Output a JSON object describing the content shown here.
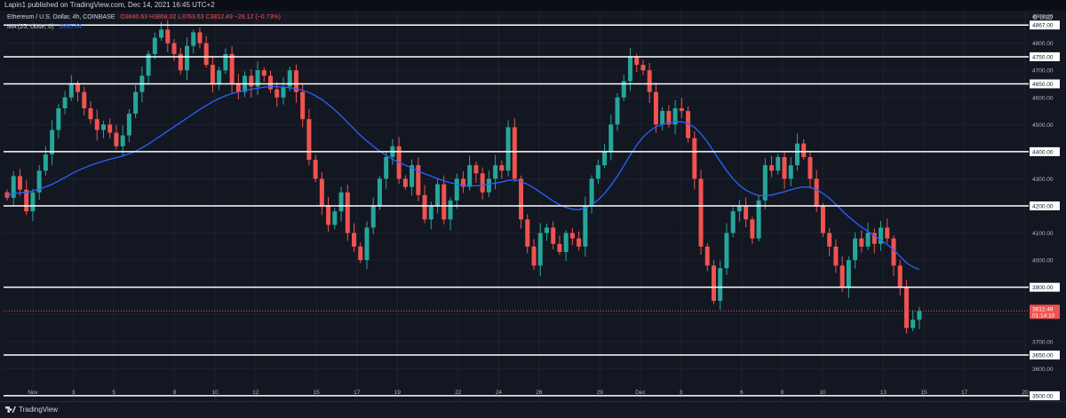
{
  "header": {
    "published_text": "Lapin1 published on TradingView.com, Dec 14, 2021 16:45 UTC+2"
  },
  "legend": {
    "symbol": "Ethereum / U.S. Dollar, 4h, COINBASE",
    "ohlc": "O3840.63 H3868.02 L3763.63 C3812.49 −28.12 (−0.73%)",
    "ma_label": "MA (25, close, 0)",
    "ma_value": "3965.44"
  },
  "axis": {
    "unit_label": "USD",
    "price_badge": "3812.49",
    "countdown": "01:14:10"
  },
  "footer": {
    "brand": "TradingView"
  },
  "colors": {
    "background": "#131722",
    "up": "#26a69a",
    "down": "#ef5350",
    "ma": "#2962ff",
    "level": "#ffffff",
    "badge": "#ef5350"
  },
  "chart_data": {
    "type": "candlestick",
    "symbol": "ETHUSD",
    "timeframe": "4h",
    "ylim": [
      3480,
      4920
    ],
    "price_ticks": [
      3500,
      3600,
      3650,
      3700,
      3800,
      3900,
      4000,
      4100,
      4200,
      4300,
      4400,
      4500,
      4600,
      4650,
      4700,
      4750,
      4800,
      4867,
      4900
    ],
    "date_ticks": [
      "Nov",
      "3",
      "5",
      "8",
      "10",
      "12",
      "15",
      "17",
      "19",
      "22",
      "24",
      "26",
      "29",
      "Dec",
      "3",
      "6",
      "8",
      "10",
      "13",
      "15",
      "17",
      "20"
    ],
    "date_tick_days": [
      0,
      2,
      4,
      7,
      9,
      11,
      14,
      16,
      18,
      21,
      23,
      25,
      28,
      30,
      32,
      35,
      37,
      39,
      42,
      44,
      46,
      49
    ],
    "horizontal_levels": [
      {
        "price": 4867,
        "label": "4867.00"
      },
      {
        "price": 4750,
        "label": "4750.00"
      },
      {
        "price": 4650,
        "label": "4650.00"
      },
      {
        "price": 4400,
        "label": "4400.00"
      },
      {
        "price": 4200,
        "label": "4200.00"
      },
      {
        "price": 3900,
        "label": "3900.00"
      },
      {
        "price": 3650,
        "label": "3650.00"
      },
      {
        "price": 3500,
        "label": "3500.00"
      }
    ],
    "current_price": 3812.49,
    "candle_closes": [
      4230,
      4310,
      4260,
      4180,
      4250,
      4330,
      4390,
      4480,
      4560,
      4600,
      4650,
      4620,
      4560,
      4520,
      4480,
      4500,
      4470,
      4420,
      4460,
      4540,
      4620,
      4680,
      4760,
      4820,
      4850,
      4800,
      4760,
      4700,
      4790,
      4840,
      4800,
      4720,
      4650,
      4700,
      4760,
      4650,
      4620,
      4680,
      4640,
      4700,
      4680,
      4630,
      4600,
      4640,
      4700,
      4620,
      4520,
      4370,
      4300,
      4200,
      4130,
      4180,
      4250,
      4100,
      4050,
      4000,
      4120,
      4200,
      4300,
      4380,
      4420,
      4300,
      4270,
      4350,
      4240,
      4150,
      4200,
      4280,
      4150,
      4220,
      4300,
      4270,
      4350,
      4320,
      4250,
      4300,
      4350,
      4330,
      4490,
      4300,
      4150,
      4050,
      3980,
      4100,
      4120,
      4060,
      4030,
      4100,
      4080,
      4050,
      4200,
      4300,
      4350,
      4400,
      4500,
      4600,
      4660,
      4750,
      4720,
      4700,
      4620,
      4500,
      4550,
      4500,
      4560,
      4550,
      4450,
      4300,
      4050,
      3980,
      3850,
      3970,
      4100,
      4180,
      4200,
      4150,
      4080,
      4220,
      4350,
      4330,
      4380,
      4300,
      4350,
      4430,
      4380,
      4300,
      4200,
      4100,
      4050,
      3980,
      3900,
      4000,
      4080,
      4050,
      4100,
      4060,
      4120,
      4080,
      3980,
      3900,
      3750,
      3780,
      3812.49
    ],
    "ma_values": [
      4240,
      4245,
      4248,
      4250,
      4255,
      4262,
      4270,
      4280,
      4292,
      4305,
      4318,
      4330,
      4340,
      4350,
      4358,
      4365,
      4372,
      4378,
      4384,
      4392,
      4402,
      4414,
      4428,
      4444,
      4460,
      4476,
      4492,
      4508,
      4524,
      4540,
      4556,
      4570,
      4584,
      4596,
      4606,
      4614,
      4620,
      4626,
      4630,
      4634,
      4638,
      4640,
      4640,
      4638,
      4636,
      4632,
      4626,
      4618,
      4606,
      4592,
      4574,
      4554,
      4532,
      4508,
      4484,
      4460,
      4440,
      4420,
      4402,
      4386,
      4372,
      4360,
      4350,
      4340,
      4328,
      4318,
      4310,
      4300,
      4292,
      4285,
      4280,
      4276,
      4274,
      4274,
      4276,
      4280,
      4284,
      4288,
      4294,
      4296,
      4290,
      4280,
      4266,
      4250,
      4234,
      4218,
      4204,
      4194,
      4188,
      4186,
      4192,
      4204,
      4222,
      4246,
      4276,
      4310,
      4348,
      4388,
      4424,
      4454,
      4476,
      4492,
      4500,
      4506,
      4510,
      4510,
      4504,
      4490,
      4466,
      4436,
      4400,
      4364,
      4330,
      4300,
      4276,
      4258,
      4246,
      4238,
      4238,
      4240,
      4246,
      4252,
      4260,
      4266,
      4270,
      4268,
      4260,
      4246,
      4228,
      4206,
      4182,
      4160,
      4140,
      4122,
      4106,
      4090,
      4074,
      4058,
      4038,
      4014,
      3990,
      3975,
      3965.44
    ]
  }
}
